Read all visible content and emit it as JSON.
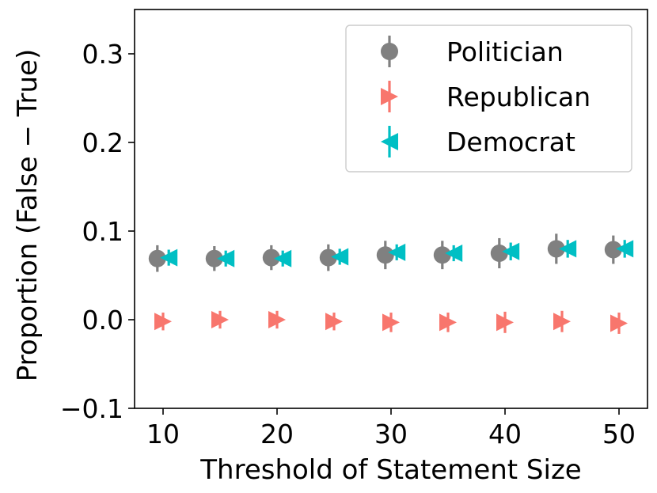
{
  "chart_data": {
    "type": "scatter",
    "title": "",
    "xlabel": "Threshold of Statement Size",
    "ylabel": "Proportion (False − True)",
    "xlim": [
      7.5,
      52.5
    ],
    "ylim": [
      -0.1,
      0.35
    ],
    "xticks": [
      10,
      20,
      30,
      40,
      50
    ],
    "xtick_labels": [
      "10",
      "20",
      "30",
      "40",
      "50"
    ],
    "yticks": [
      -0.1,
      0.0,
      0.1,
      0.2,
      0.3
    ],
    "ytick_labels": [
      "−0.1",
      "0.0",
      "0.1",
      "0.2",
      "0.3"
    ],
    "grid": false,
    "legend_position": "top-right",
    "x": [
      10,
      15,
      20,
      25,
      30,
      35,
      40,
      45,
      50
    ],
    "series": [
      {
        "name": "Politician",
        "color": "#808080",
        "marker": "circle",
        "x_offset": -0.5,
        "values": [
          0.069,
          0.069,
          0.07,
          0.07,
          0.073,
          0.073,
          0.075,
          0.08,
          0.079
        ],
        "error": [
          0.015,
          0.014,
          0.014,
          0.015,
          0.016,
          0.016,
          0.017,
          0.017,
          0.016
        ]
      },
      {
        "name": "Republican",
        "color": "#f8766d",
        "marker": "triangle-right",
        "x_offset": 0,
        "values": [
          -0.002,
          0.0,
          0.0,
          -0.002,
          -0.003,
          -0.003,
          -0.003,
          -0.002,
          -0.004
        ],
        "error": [
          0.01,
          0.01,
          0.01,
          0.01,
          0.011,
          0.011,
          0.012,
          0.012,
          0.012
        ]
      },
      {
        "name": "Democrat",
        "color": "#00bfc4",
        "marker": "triangle-left",
        "x_offset": 0.5,
        "values": [
          0.07,
          0.069,
          0.069,
          0.071,
          0.076,
          0.075,
          0.077,
          0.08,
          0.08
        ],
        "error": [
          0.009,
          0.009,
          0.009,
          0.009,
          0.009,
          0.009,
          0.01,
          0.01,
          0.01
        ]
      }
    ]
  }
}
